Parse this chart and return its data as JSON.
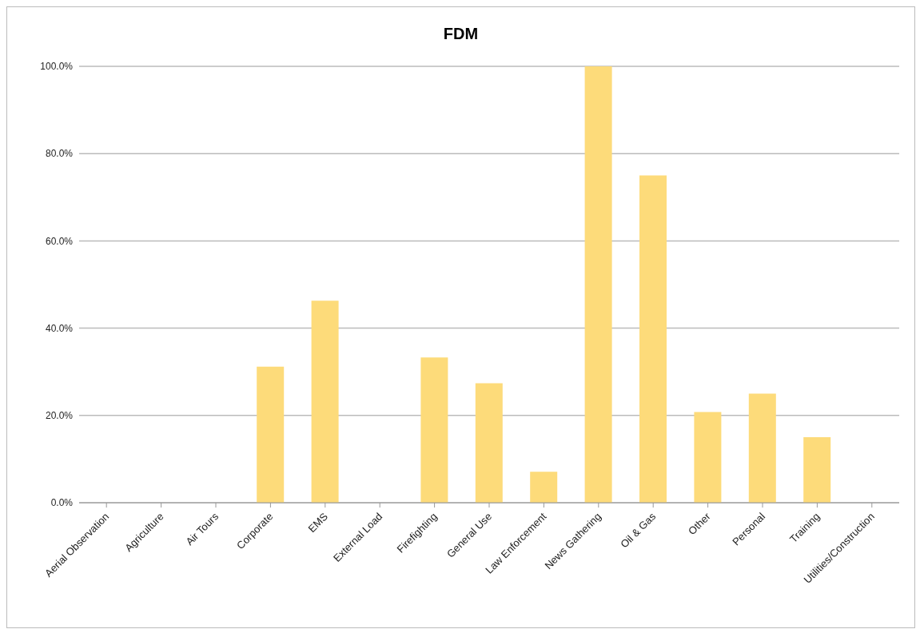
{
  "chart_data": {
    "type": "bar",
    "title": "FDM",
    "categories": [
      "Aerial Observation",
      "Agriculture",
      "Air Tours",
      "Corporate",
      "EMS",
      "External Load",
      "Firefighting",
      "General Use",
      "Law Enforcement",
      "News Gathering",
      "Oil & Gas",
      "Other",
      "Personal",
      "Training",
      "Utilities/Construction"
    ],
    "values": [
      0,
      0,
      0,
      31.2,
      46.3,
      0,
      33.3,
      27.4,
      7.1,
      100,
      75,
      20.8,
      25,
      15,
      0
    ],
    "color": "#fddb7a",
    "ylim": [
      0,
      100
    ],
    "yticks": [
      {
        "value": 0,
        "label": "0.0%"
      },
      {
        "value": 20,
        "label": "20.0%"
      },
      {
        "value": 40,
        "label": "40.0%"
      },
      {
        "value": 60,
        "label": "60.0%"
      },
      {
        "value": 80,
        "label": "80.0%"
      },
      {
        "value": 100,
        "label": "100.0%"
      }
    ],
    "grid": "y"
  }
}
